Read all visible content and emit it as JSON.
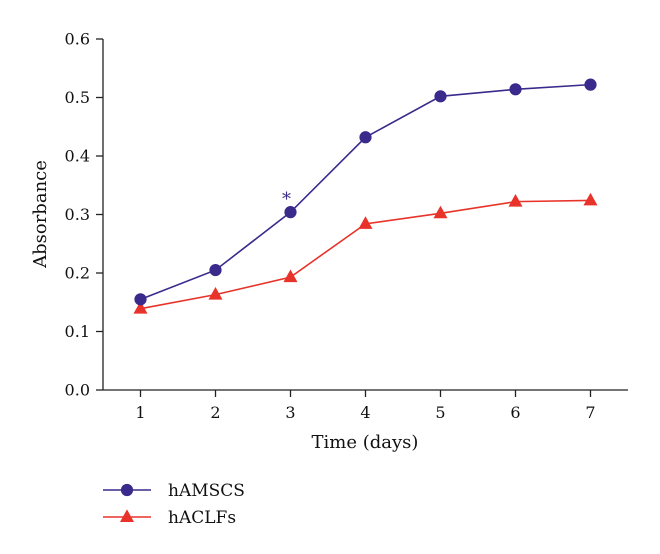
{
  "chart_data": {
    "type": "line",
    "xlabel": "Time (days)",
    "ylabel": "Absorbance",
    "x": [
      1,
      2,
      3,
      4,
      5,
      6,
      7
    ],
    "xlim": [
      0.5,
      7.5
    ],
    "ylim": [
      0.0,
      0.6
    ],
    "x_ticks": [
      "1",
      "2",
      "3",
      "4",
      "5",
      "6",
      "7"
    ],
    "y_ticks": [
      "0.0",
      "0.1",
      "0.2",
      "0.3",
      "0.4",
      "0.5",
      "0.6"
    ],
    "grid": false,
    "legend_position": "bottom-left",
    "series": [
      {
        "name": "hAMSCS",
        "values": [
          0.155,
          0.205,
          0.304,
          0.432,
          0.502,
          0.514,
          0.522
        ],
        "color": "#3a2a8c",
        "marker": "circle"
      },
      {
        "name": "hACLFs",
        "values": [
          0.139,
          0.163,
          0.193,
          0.284,
          0.302,
          0.322,
          0.324
        ],
        "color": "#e8332a",
        "marker": "triangle"
      }
    ],
    "annotations": [
      {
        "text": "*",
        "x": 3,
        "y": 0.304,
        "series": "hAMSCS"
      }
    ]
  }
}
